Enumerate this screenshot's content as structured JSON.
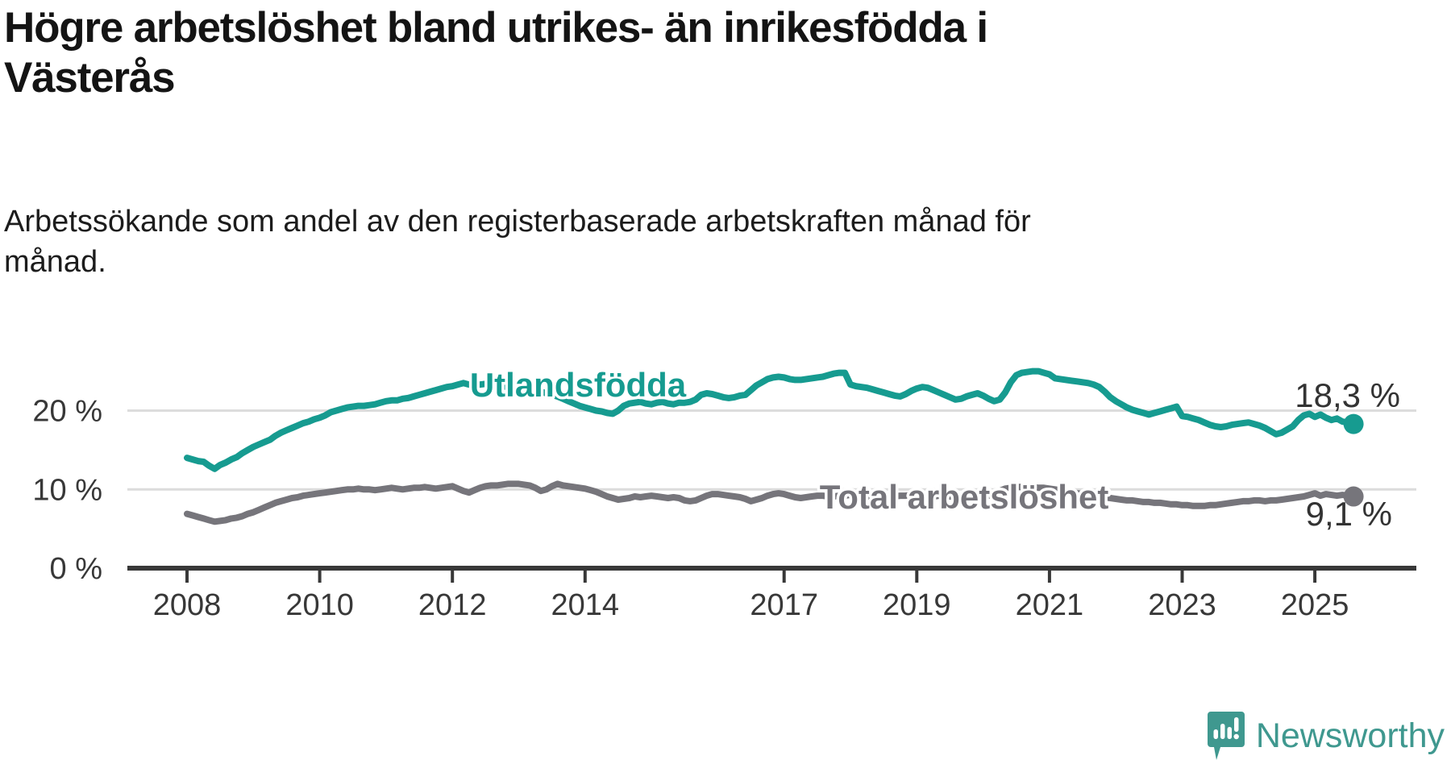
{
  "header": {
    "title_line1": "Högre arbetslöshet bland utrikes- än inrikesfödda i",
    "title_line2": "Västerås",
    "subtitle_line1": "Arbetssökande som andel av den registerbaserade arbetskraften månad för",
    "subtitle_line2": "månad."
  },
  "footer": {
    "brand": "Newsworthy",
    "brand_color": "#3f988f",
    "icon": "newsworthy-speech-bubble-chart-logo"
  },
  "chart_data": {
    "type": "line",
    "title": "Högre arbetslöshet bland utrikes- än inrikesfödda i Västerås",
    "subtitle": "Arbetssökande som andel av den registerbaserade arbetskraften månad för månad.",
    "x_start_year": 2008,
    "x_end_label": "2025 (august)",
    "points_per_year": 12,
    "ylim": [
      0,
      27
    ],
    "grid": "horizontal",
    "legend_position": "inline-labels",
    "colors": {
      "axis": "#383838",
      "grid": "#dcdcdc",
      "tick_label": "#383838",
      "value_label": "#333333"
    },
    "y_ticks": [
      {
        "value": 0,
        "label": "0 %"
      },
      {
        "value": 10,
        "label": "10 %"
      },
      {
        "value": 20,
        "label": "20 %"
      }
    ],
    "x_ticks": [
      {
        "year": 2008,
        "label": "2008"
      },
      {
        "year": 2010,
        "label": "2010"
      },
      {
        "year": 2012,
        "label": "2012"
      },
      {
        "year": 2014,
        "label": "2014"
      },
      {
        "year": 2017,
        "label": "2017"
      },
      {
        "year": 2019,
        "label": "2019"
      },
      {
        "year": 2021,
        "label": "2021"
      },
      {
        "year": 2023,
        "label": "2023"
      },
      {
        "year": 2025,
        "label": "2025"
      }
    ],
    "series": [
      {
        "name": "Utlandsfödda",
        "color": "#169b90",
        "end_label": "18,3 %",
        "end_value": 18.3,
        "values": [
          14.0,
          13.8,
          13.6,
          13.5,
          13.0,
          12.6,
          13.1,
          13.4,
          13.8,
          14.1,
          14.6,
          15.0,
          15.4,
          15.7,
          16.0,
          16.3,
          16.8,
          17.2,
          17.5,
          17.8,
          18.1,
          18.4,
          18.6,
          18.9,
          19.1,
          19.4,
          19.8,
          20.0,
          20.2,
          20.4,
          20.5,
          20.6,
          20.6,
          20.7,
          20.8,
          21.0,
          21.2,
          21.3,
          21.3,
          21.5,
          21.6,
          21.8,
          22.0,
          22.2,
          22.4,
          22.6,
          22.8,
          23.0,
          23.1,
          23.3,
          23.5,
          23.3,
          23.2,
          23.3,
          23.4,
          23.3,
          23.2,
          23.1,
          23.0,
          23.0,
          22.9,
          22.8,
          22.7,
          22.6,
          22.4,
          22.2,
          22.0,
          21.8,
          21.5,
          21.2,
          20.9,
          20.6,
          20.4,
          20.2,
          20.0,
          19.9,
          19.7,
          19.6,
          20.0,
          20.6,
          20.9,
          21.0,
          21.1,
          20.9,
          20.8,
          21.0,
          21.1,
          20.9,
          20.8,
          21.0,
          21.0,
          21.1,
          21.4,
          22.0,
          22.2,
          22.1,
          21.9,
          21.7,
          21.6,
          21.7,
          21.9,
          22.0,
          22.6,
          23.2,
          23.6,
          24.0,
          24.2,
          24.3,
          24.2,
          24.0,
          23.9,
          23.9,
          24.0,
          24.1,
          24.2,
          24.3,
          24.5,
          24.7,
          24.8,
          24.8,
          23.3,
          23.1,
          23.0,
          22.9,
          22.7,
          22.5,
          22.3,
          22.1,
          21.9,
          21.8,
          22.1,
          22.5,
          22.8,
          23.0,
          22.9,
          22.6,
          22.3,
          22.0,
          21.7,
          21.4,
          21.5,
          21.8,
          22.0,
          22.2,
          21.9,
          21.5,
          21.2,
          21.4,
          22.3,
          23.6,
          24.5,
          24.8,
          24.9,
          25.0,
          25.0,
          24.8,
          24.6,
          24.1,
          24.0,
          23.9,
          23.8,
          23.7,
          23.6,
          23.5,
          23.3,
          23.0,
          22.4,
          21.7,
          21.2,
          20.8,
          20.4,
          20.1,
          19.9,
          19.7,
          19.5,
          19.7,
          19.9,
          20.1,
          20.3,
          20.5,
          19.3,
          19.2,
          19.0,
          18.8,
          18.5,
          18.2,
          18.0,
          17.9,
          18.0,
          18.2,
          18.3,
          18.4,
          18.5,
          18.3,
          18.1,
          17.8,
          17.4,
          17.0,
          17.2,
          17.6,
          18.0,
          18.8,
          19.4,
          19.6,
          19.2,
          19.5,
          19.1,
          18.8,
          19.0,
          18.6,
          18.5,
          18.3
        ]
      },
      {
        "name": "Total arbetslöshet",
        "color": "#76757b",
        "end_label": "9,1 %",
        "end_value": 9.1,
        "values": [
          6.9,
          6.7,
          6.5,
          6.3,
          6.1,
          5.9,
          6.0,
          6.1,
          6.3,
          6.4,
          6.6,
          6.9,
          7.1,
          7.4,
          7.7,
          8.0,
          8.3,
          8.5,
          8.7,
          8.9,
          9.0,
          9.2,
          9.3,
          9.4,
          9.5,
          9.6,
          9.7,
          9.8,
          9.9,
          10.0,
          10.0,
          10.1,
          10.0,
          10.0,
          9.9,
          10.0,
          10.1,
          10.2,
          10.1,
          10.0,
          10.1,
          10.2,
          10.2,
          10.3,
          10.2,
          10.1,
          10.2,
          10.3,
          10.4,
          10.1,
          9.8,
          9.6,
          9.9,
          10.2,
          10.4,
          10.5,
          10.5,
          10.6,
          10.7,
          10.7,
          10.7,
          10.6,
          10.5,
          10.2,
          9.8,
          10.0,
          10.4,
          10.7,
          10.5,
          10.4,
          10.3,
          10.2,
          10.1,
          9.9,
          9.7,
          9.4,
          9.1,
          8.9,
          8.7,
          8.8,
          8.9,
          9.1,
          9.0,
          9.1,
          9.2,
          9.1,
          9.0,
          8.9,
          9.0,
          8.9,
          8.6,
          8.5,
          8.6,
          8.9,
          9.2,
          9.4,
          9.4,
          9.3,
          9.2,
          9.1,
          9.0,
          8.8,
          8.5,
          8.7,
          8.9,
          9.2,
          9.4,
          9.5,
          9.4,
          9.2,
          9.0,
          8.9,
          9.0,
          9.1,
          9.2,
          9.2,
          9.1,
          9.1,
          9.2,
          9.2,
          9.3,
          9.2,
          9.1,
          9.0,
          9.1,
          9.1,
          9.2,
          9.2,
          9.1,
          9.2,
          9.2,
          9.3,
          9.3,
          9.2,
          9.1,
          9.1,
          9.2,
          9.2,
          9.1,
          9.0,
          9.1,
          9.2,
          9.2,
          9.1,
          9.1,
          9.2,
          9.3,
          9.8,
          10.1,
          10.2,
          10.3,
          10.3,
          10.3,
          10.3,
          10.2,
          10.2,
          10.1,
          10.0,
          9.9,
          9.8,
          9.7,
          9.5,
          9.4,
          9.3,
          9.2,
          9.1,
          9.0,
          8.9,
          8.8,
          8.7,
          8.6,
          8.6,
          8.5,
          8.4,
          8.4,
          8.3,
          8.3,
          8.2,
          8.1,
          8.1,
          8.0,
          8.0,
          7.9,
          7.9,
          7.9,
          8.0,
          8.0,
          8.1,
          8.2,
          8.3,
          8.4,
          8.5,
          8.5,
          8.6,
          8.6,
          8.5,
          8.6,
          8.6,
          8.7,
          8.8,
          8.9,
          9.0,
          9.1,
          9.3,
          9.5,
          9.2,
          9.4,
          9.3,
          9.2,
          9.3,
          9.2,
          9.1
        ]
      }
    ]
  }
}
